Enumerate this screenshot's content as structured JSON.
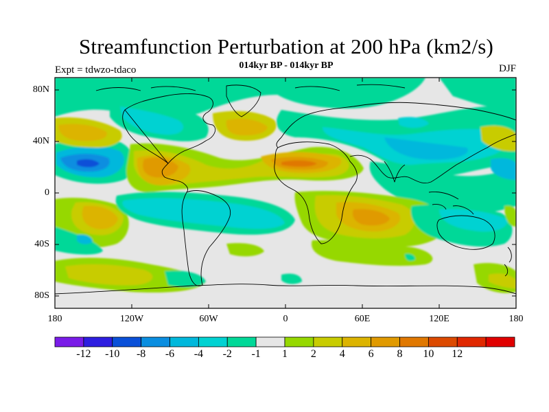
{
  "title": "Streamfunction Perturbation at 200 hPa (km2/s)",
  "subtitle": "014kyr BP - 014kyr BP",
  "left_label": "Expt = tdwzo-tdaco",
  "right_label": "DJF",
  "lat_ticks": [
    "80N",
    "40N",
    "0",
    "40S",
    "80S"
  ],
  "lon_ticks": [
    "180",
    "120W",
    "60W",
    "0",
    "60E",
    "120E",
    "180"
  ],
  "colorbar": {
    "colors": [
      "#7a1ce8",
      "#2e1ee0",
      "#0a50d8",
      "#0a8ee0",
      "#00b8dc",
      "#00d2d2",
      "#00d898",
      "#e6e6e6",
      "#96d800",
      "#c8cc00",
      "#dcb400",
      "#e09a00",
      "#e07800",
      "#dc4a00",
      "#e02800",
      "#e00000"
    ],
    "labels": [
      "-12",
      "-10",
      "-8",
      "-6",
      "-4",
      "-2",
      "-1",
      "1",
      "2",
      "4",
      "6",
      "8",
      "10",
      "12"
    ]
  }
}
